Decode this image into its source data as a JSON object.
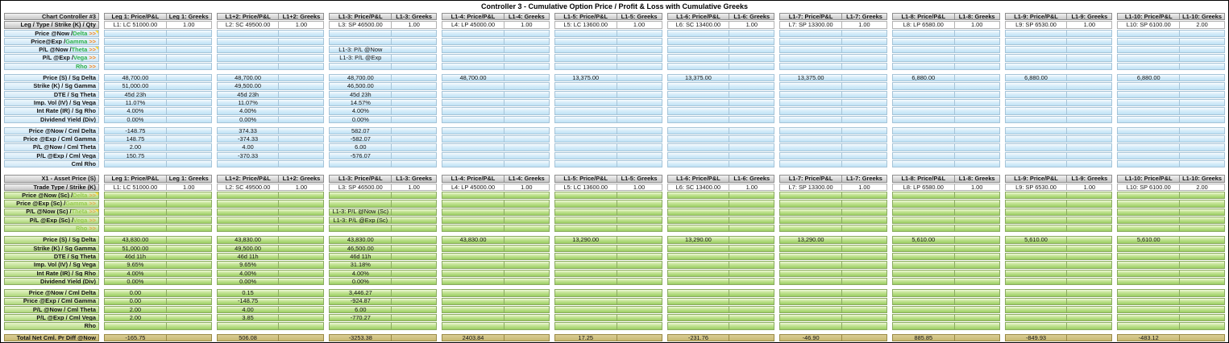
{
  "title": "Controller 3 - Cumulative Option Price / Profit & Loss with Cumulative Greeks",
  "arrows": ">>",
  "colors": {
    "greek_green": "#2db04a",
    "arrow_orange": "#f6871f",
    "top_theme_blue": "#cfe9f8",
    "bottom_theme_green": "#aed77b",
    "total_row_tan": "#cdbf7d",
    "note_yellow": "#ffd83d"
  },
  "groups": [
    {
      "price_header": "Leg 1: Price/P&L",
      "greeks_header": "Leg 1: Greeks",
      "leg": "L1: LC 51000.00",
      "qty": "1.00"
    },
    {
      "price_header": "L1+2: Price/P&L",
      "greeks_header": "L1+2: Greeks",
      "leg": "L2: SC 49500.00",
      "qty": "1.00"
    },
    {
      "price_header": "L1-3: Price/P&L",
      "greeks_header": "L1-3: Greeks",
      "leg": "L3: SP 46500.00",
      "qty": "1.00"
    },
    {
      "price_header": "L1-4: Price/P&L",
      "greeks_header": "L1-4: Greeks",
      "leg": "L4: LP 45000.00",
      "qty": "1.00"
    },
    {
      "price_header": "L1-5: Price/P&L",
      "greeks_header": "L1-5: Greeks",
      "leg": "L5: LC 13600.00",
      "qty": "1.00"
    },
    {
      "price_header": "L1-6: Price/P&L",
      "greeks_header": "L1-6: Greeks",
      "leg": "L6: SC 13400.00",
      "qty": "1.00"
    },
    {
      "price_header": "L1-7: Price/P&L",
      "greeks_header": "L1-7: Greeks",
      "leg": "L7: SP 13300.00",
      "qty": "1.00"
    },
    {
      "price_header": "L1-8: Price/P&L",
      "greeks_header": "L1-8: Greeks",
      "leg": "L8: LP 6580.00",
      "qty": "1.00"
    },
    {
      "price_header": "L1-9: Price/P&L",
      "greeks_header": "L1-9: Greeks",
      "leg": "L9: SP 6530.00",
      "qty": "1.00"
    },
    {
      "price_header": "L1-10: Price/P&L",
      "greeks_header": "L1-10: Greeks",
      "leg": "L10: SP 6100.00",
      "qty": "2.00"
    }
  ],
  "sections": {
    "top": {
      "corner": "Chart Controller #3",
      "corner_note": true,
      "leg_label": "Leg / Type / Strike (K) / Qty",
      "greek_rows": [
        {
          "prefix": "Price @Now / ",
          "greek": "Delta",
          "note": true,
          "values": [
            "",
            "",
            "",
            "",
            "",
            "",
            "",
            "",
            "",
            ""
          ]
        },
        {
          "prefix": "Price@Exp / ",
          "greek": "Gamma",
          "note": false,
          "values": [
            "",
            "",
            "",
            "",
            "",
            "",
            "",
            "",
            "",
            ""
          ]
        },
        {
          "prefix": "P/L @Now / ",
          "greek": "Theta",
          "note": true,
          "values": [
            "",
            "",
            "L1-3: P/L @Now",
            "",
            "",
            "",
            "",
            "",
            "",
            ""
          ]
        },
        {
          "prefix": "P/L @Exp / ",
          "greek": "Vega",
          "note": false,
          "values": [
            "",
            "",
            "L1-3: P/L @Exp",
            "",
            "",
            "",
            "",
            "",
            "",
            ""
          ]
        },
        {
          "prefix": "",
          "greek": "Rho",
          "note": false,
          "values": [
            "",
            "",
            "",
            "",
            "",
            "",
            "",
            "",
            "",
            ""
          ]
        }
      ],
      "param_rows": [
        {
          "label": "Price (S) / Sg Delta",
          "note": true,
          "values": [
            "48,700.00",
            "48,700.00",
            "48,700.00",
            "48,700.00",
            "13,375.00",
            "13,375.00",
            "13,375.00",
            "6,880.00",
            "6,880.00",
            "6,880.00"
          ]
        },
        {
          "label": "Strike (K) / Sg Gamma",
          "note": false,
          "values": [
            "51,000.00",
            "49,500.00",
            "46,500.00",
            "",
            "",
            "",
            "",
            "",
            "",
            ""
          ]
        },
        {
          "label": "DTE / Sg Theta",
          "note": false,
          "values": [
            "45d 23h",
            "45d 23h",
            "45d 23h",
            "",
            "",
            "",
            "",
            "",
            "",
            ""
          ]
        },
        {
          "label": "Imp. Vol (IV) / Sg Vega",
          "note": false,
          "values": [
            "11.07%",
            "11.07%",
            "14.57%",
            "",
            "",
            "",
            "",
            "",
            "",
            ""
          ]
        },
        {
          "label": "Int Rate (IR) / Sg Rho",
          "note": false,
          "values": [
            "4.00%",
            "4.00%",
            "4.00%",
            "",
            "",
            "",
            "",
            "",
            "",
            ""
          ]
        },
        {
          "label": "Dividend Yield (Div)",
          "note": false,
          "values": [
            "0.00%",
            "0.00%",
            "0.00%",
            "",
            "",
            "",
            "",
            "",
            "",
            ""
          ]
        }
      ],
      "cml_rows": [
        {
          "label": "Price @Now / Cml Delta",
          "note": true,
          "values": [
            "-148.75",
            "374.33",
            "582.07",
            "",
            "",
            "",
            "",
            "",
            "",
            ""
          ]
        },
        {
          "label": "Price @Exp / Cml Gamma",
          "note": false,
          "values": [
            "148.75",
            "-374.33",
            "-582.07",
            "",
            "",
            "",
            "",
            "",
            "",
            ""
          ]
        },
        {
          "label": "P/L @Now / Cml Theta",
          "note": false,
          "values": [
            "2.00",
            "4.00",
            "6.00",
            "",
            "",
            "",
            "",
            "",
            "",
            ""
          ]
        },
        {
          "label": "P/L @Exp / Cml Vega",
          "note": false,
          "values": [
            "150.75",
            "-370.33",
            "-576.07",
            "",
            "",
            "",
            "",
            "",
            "",
            ""
          ]
        },
        {
          "label": "Cml Rho",
          "note": false,
          "values": [
            "",
            "",
            "",
            "",
            "",
            "",
            "",
            "",
            "",
            ""
          ]
        }
      ]
    },
    "bottom": {
      "corner": "X1 - Asset Price (S)",
      "corner_note": false,
      "leg_label": "Trade Type / Strike (K)",
      "greek_rows": [
        {
          "prefix": "Price @Now (Sc) / ",
          "greek": "Delta",
          "note": true,
          "values": [
            "",
            "",
            "",
            "",
            "",
            "",
            "",
            "",
            "",
            ""
          ]
        },
        {
          "prefix": "Price @Exp (Sc) / ",
          "greek": "Gamma",
          "note": false,
          "values": [
            "",
            "",
            "",
            "",
            "",
            "",
            "",
            "",
            "",
            ""
          ]
        },
        {
          "prefix": "P/L @Now (Sc) / ",
          "greek": "Theta",
          "note": true,
          "values": [
            "",
            "",
            "L1-3: P/L @Now (Sc)",
            "",
            "",
            "",
            "",
            "",
            "",
            ""
          ]
        },
        {
          "prefix": "P/L @Exp (Sc) / ",
          "greek": "Vega",
          "note": false,
          "values": [
            "",
            "",
            "L1-3: P/L @Exp (Sc)",
            "",
            "",
            "",
            "",
            "",
            "",
            ""
          ]
        },
        {
          "prefix": "",
          "greek": "Rho",
          "note": false,
          "values": [
            "",
            "",
            "",
            "",
            "",
            "",
            "",
            "",
            "",
            ""
          ]
        }
      ],
      "param_rows": [
        {
          "label": "Price (S) / Sg Delta",
          "note": true,
          "values": [
            "43,830.00",
            "43,830.00",
            "43,830.00",
            "43,830.00",
            "13,290.00",
            "13,290.00",
            "13,290.00",
            "5,610.00",
            "5,610.00",
            "5,610.00"
          ]
        },
        {
          "label": "Strike (K) / Sg Gamma",
          "note": false,
          "values": [
            "51,000.00",
            "49,500.00",
            "46,500.00",
            "",
            "",
            "",
            "",
            "",
            "",
            ""
          ]
        },
        {
          "label": "DTE / Sg Theta",
          "note": false,
          "values": [
            "46d 11h",
            "46d 11h",
            "46d 11h",
            "",
            "",
            "",
            "",
            "",
            "",
            ""
          ]
        },
        {
          "label": "Imp. Vol (IV) / Sg Vega",
          "note": false,
          "values": [
            "9.65%",
            "9.65%",
            "31.18%",
            "",
            "",
            "",
            "",
            "",
            "",
            ""
          ]
        },
        {
          "label": "Int Rate (IR) / Sg Rho",
          "note": false,
          "values": [
            "4.00%",
            "4.00%",
            "4.00%",
            "",
            "",
            "",
            "",
            "",
            "",
            ""
          ]
        },
        {
          "label": "Dividend Yield (Div)",
          "note": false,
          "values": [
            "0.00%",
            "0.00%",
            "0.00%",
            "",
            "",
            "",
            "",
            "",
            "",
            ""
          ]
        }
      ],
      "cml_rows": [
        {
          "label": "Price @Now / Cml Delta",
          "note": true,
          "values": [
            "0.00",
            "0.15",
            "3,446.27",
            "",
            "",
            "",
            "",
            "",
            "",
            ""
          ]
        },
        {
          "label": "Price @Exp / Cml Gamma",
          "note": false,
          "values": [
            "0.00",
            "-148.75",
            "-924.87",
            "",
            "",
            "",
            "",
            "",
            "",
            ""
          ]
        },
        {
          "label": "P/L @Now / Cml Theta",
          "note": false,
          "values": [
            "2.00",
            "4.00",
            "6.00",
            "",
            "",
            "",
            "",
            "",
            "",
            ""
          ]
        },
        {
          "label": "P/L @Exp / Cml Vega",
          "note": false,
          "values": [
            "2.00",
            "3.85",
            "-770.27",
            "",
            "",
            "",
            "",
            "",
            "",
            ""
          ]
        },
        {
          "label": "Rho",
          "note": false,
          "values": [
            "",
            "",
            "",
            "",
            "",
            "",
            "",
            "",
            "",
            ""
          ]
        }
      ],
      "total_row": {
        "label": "Total Net Cml. Pr Diff @Now",
        "values": [
          "-165.75",
          "506.08",
          "-3253.38",
          "2403.84",
          "17.25",
          "-231.76",
          "-46.90",
          "885.85",
          "-849.93",
          "-483.12"
        ]
      }
    }
  }
}
